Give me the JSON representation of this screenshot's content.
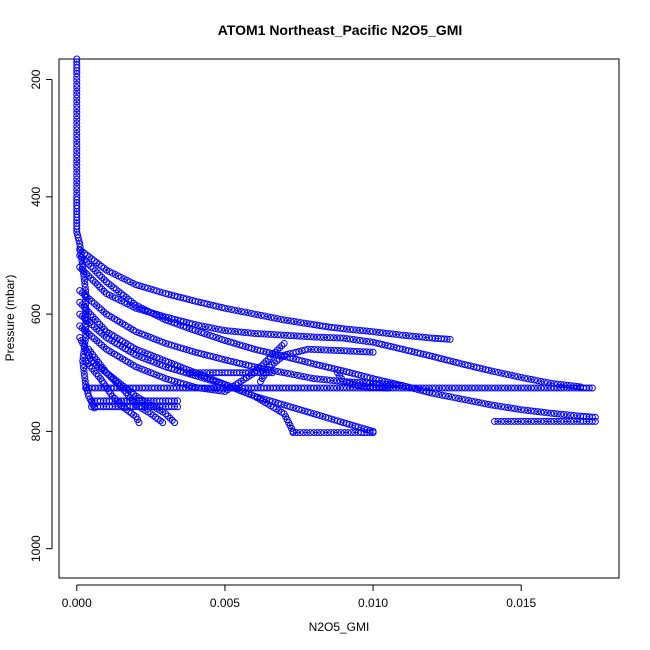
{
  "chart_data": {
    "type": "scatter",
    "title": "ATOM1 Northeast_Pacific N2O5_GMI",
    "xlabel": "N2O5_GMI",
    "ylabel": "Pressure (mbar)",
    "xlim": [
      -0.0006,
      0.0183
    ],
    "ylim": [
      1050,
      165
    ],
    "y_reversed": true,
    "x_ticks": [
      0.0,
      0.005,
      0.01,
      0.015
    ],
    "x_tick_labels": [
      "0.000",
      "0.005",
      "0.010",
      "0.015"
    ],
    "y_ticks": [
      200,
      400,
      600,
      800,
      1000
    ],
    "y_tick_labels": [
      "200",
      "400",
      "600",
      "800",
      "1000"
    ],
    "grid": false,
    "marker": "open-circle",
    "color": "#0000ff",
    "series": [
      {
        "x": [
          0.0,
          0.0,
          0.0,
          0.0,
          0.0,
          0.0,
          0.0,
          0.0,
          0.0,
          0.0,
          0.0,
          0.0,
          0.0001,
          0.0002,
          0.0003,
          0.0003,
          0.0003,
          0.0002,
          0.0003,
          0.0004,
          0.0006
        ],
        "y": [
          165,
          190,
          220,
          250,
          280,
          310,
          340,
          370,
          400,
          420,
          440,
          460,
          480,
          520,
          560,
          600,
          640,
          680,
          720,
          740,
          760
        ]
      },
      {
        "x": [
          0.0001,
          0.001,
          0.002,
          0.003,
          0.004,
          0.005,
          0.006,
          0.007,
          0.008,
          0.0085,
          0.009,
          0.01,
          0.011,
          0.012,
          0.0126
        ],
        "y": [
          490,
          525,
          550,
          565,
          578,
          590,
          600,
          610,
          618,
          622,
          625,
          630,
          636,
          641,
          643
        ]
      },
      {
        "x": [
          0.0001,
          0.001,
          0.002,
          0.003,
          0.004,
          0.005,
          0.006,
          0.007,
          0.008,
          0.009,
          0.01,
          0.011,
          0.012,
          0.013,
          0.014,
          0.015,
          0.016,
          0.017,
          0.0175
        ],
        "y": [
          500,
          545,
          585,
          610,
          628,
          645,
          660,
          672,
          685,
          697,
          710,
          722,
          735,
          745,
          755,
          763,
          769,
          774,
          776
        ]
      },
      {
        "x": [
          0.0001,
          0.001,
          0.002,
          0.003,
          0.004,
          0.005,
          0.006,
          0.007,
          0.008,
          0.009,
          0.01,
          0.011,
          0.012,
          0.013,
          0.014,
          0.015,
          0.016,
          0.017
        ],
        "y": [
          520,
          565,
          590,
          605,
          618,
          628,
          633,
          636,
          639,
          641,
          648,
          660,
          672,
          685,
          697,
          708,
          718,
          724
        ]
      },
      {
        "x": [
          0.0001,
          0.001,
          0.002,
          0.003,
          0.004,
          0.005,
          0.006,
          0.007,
          0.008,
          0.009,
          0.01,
          0.011
        ],
        "y": [
          560,
          600,
          630,
          650,
          665,
          678,
          690,
          700,
          710,
          715,
          718,
          722
        ]
      },
      {
        "x": [
          0.0001,
          0.001,
          0.002,
          0.003,
          0.004,
          0.005,
          0.006,
          0.007,
          0.008,
          0.009,
          0.01
        ],
        "y": [
          580,
          630,
          660,
          680,
          700,
          720,
          740,
          755,
          770,
          785,
          800
        ]
      },
      {
        "x": [
          0.0001,
          0.001,
          0.002,
          0.003,
          0.004,
          0.005,
          0.006,
          0.007,
          0.0073
        ],
        "y": [
          600,
          640,
          670,
          690,
          705,
          720,
          740,
          770,
          800
        ]
      },
      {
        "x": [
          0.0001,
          0.001,
          0.002,
          0.003,
          0.004,
          0.005,
          0.006,
          0.007
        ],
        "y": [
          620,
          660,
          690,
          710,
          725,
          732,
          700,
          650
        ]
      },
      {
        "x": [
          0.0001,
          0.0005,
          0.001,
          0.0015,
          0.002,
          0.0025,
          0.003,
          0.0033
        ],
        "y": [
          640,
          680,
          700,
          720,
          740,
          755,
          770,
          785
        ]
      },
      {
        "x": [
          0.0004,
          0.001,
          0.0016,
          0.002,
          0.0025,
          0.0029
        ],
        "y": [
          660,
          700,
          730,
          755,
          770,
          785
        ]
      },
      {
        "x": [
          0.0003,
          0.0008,
          0.0012,
          0.0016,
          0.002,
          0.0021
        ],
        "y": [
          680,
          710,
          740,
          760,
          775,
          785
        ]
      },
      {
        "x": [
          0.0003,
          0.002,
          0.004,
          0.006,
          0.008,
          0.009,
          0.01,
          0.011,
          0.012,
          0.013,
          0.014,
          0.015,
          0.016,
          0.017,
          0.0174
        ],
        "y": [
          726,
          726,
          726,
          726,
          726,
          726,
          726,
          726,
          726,
          726,
          726,
          726,
          726,
          726,
          726
        ]
      },
      {
        "x": [
          0.0005,
          0.001,
          0.0015,
          0.002,
          0.0025,
          0.003,
          0.0034
        ],
        "y": [
          748,
          748,
          748,
          748,
          748,
          748,
          748
        ]
      },
      {
        "x": [
          0.0005,
          0.001,
          0.0015,
          0.002,
          0.0025,
          0.003,
          0.0034
        ],
        "y": [
          758,
          758,
          758,
          758,
          758,
          758,
          758
        ]
      },
      {
        "x": [
          0.0038,
          0.0045,
          0.005,
          0.0055,
          0.006,
          0.0066
        ],
        "y": [
          700,
          700,
          700,
          700,
          700,
          700
        ]
      },
      {
        "x": [
          0.0073,
          0.008,
          0.0088,
          0.0095,
          0.01
        ],
        "y": [
          802,
          802,
          802,
          802,
          802
        ]
      },
      {
        "x": [
          0.0141,
          0.015,
          0.016,
          0.017,
          0.0175
        ],
        "y": [
          783,
          783,
          783,
          783,
          783
        ]
      },
      {
        "x": [
          0.0088,
          0.009,
          0.0095,
          0.01,
          0.0105
        ],
        "y": [
          700,
          715,
          722,
          725,
          726
        ]
      },
      {
        "x": [
          0.0062,
          0.0065,
          0.007,
          0.0078,
          0.0088,
          0.01
        ],
        "y": [
          715,
          690,
          670,
          660,
          662,
          665
        ]
      }
    ]
  }
}
